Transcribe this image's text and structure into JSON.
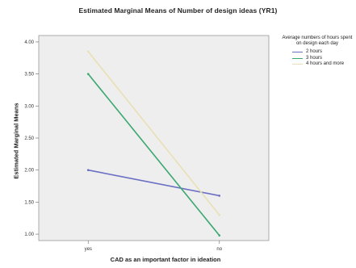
{
  "chart_data": {
    "type": "line",
    "title": "Estimated Marginal Means of Number of design ideas (YR1)",
    "xlabel": "CAD as an important factor in ideation",
    "ylabel": "Estimated Marginal Means",
    "categories": [
      "yes",
      "no"
    ],
    "ylim": [
      0.9,
      4.1
    ],
    "yticks": [
      "1.00",
      "1.50",
      "2.00",
      "2.50",
      "3.00",
      "3.50",
      "4.00"
    ],
    "ytick_values": [
      1.0,
      1.5,
      2.0,
      2.5,
      3.0,
      3.5,
      4.0
    ],
    "legend_title": "Average numbers of hours spent on design each day",
    "legend_position": "right",
    "series": [
      {
        "name": "2 hours",
        "color": "#6a6fc4",
        "values": [
          2.0,
          1.6
        ]
      },
      {
        "name": "3 hours",
        "color": "#3aa870",
        "values": [
          3.5,
          0.98
        ]
      },
      {
        "name": "4 hours and more",
        "color": "#e8e0b4",
        "values": [
          3.85,
          1.3
        ]
      }
    ],
    "plot_background": "#eeeeee",
    "grid": false
  }
}
